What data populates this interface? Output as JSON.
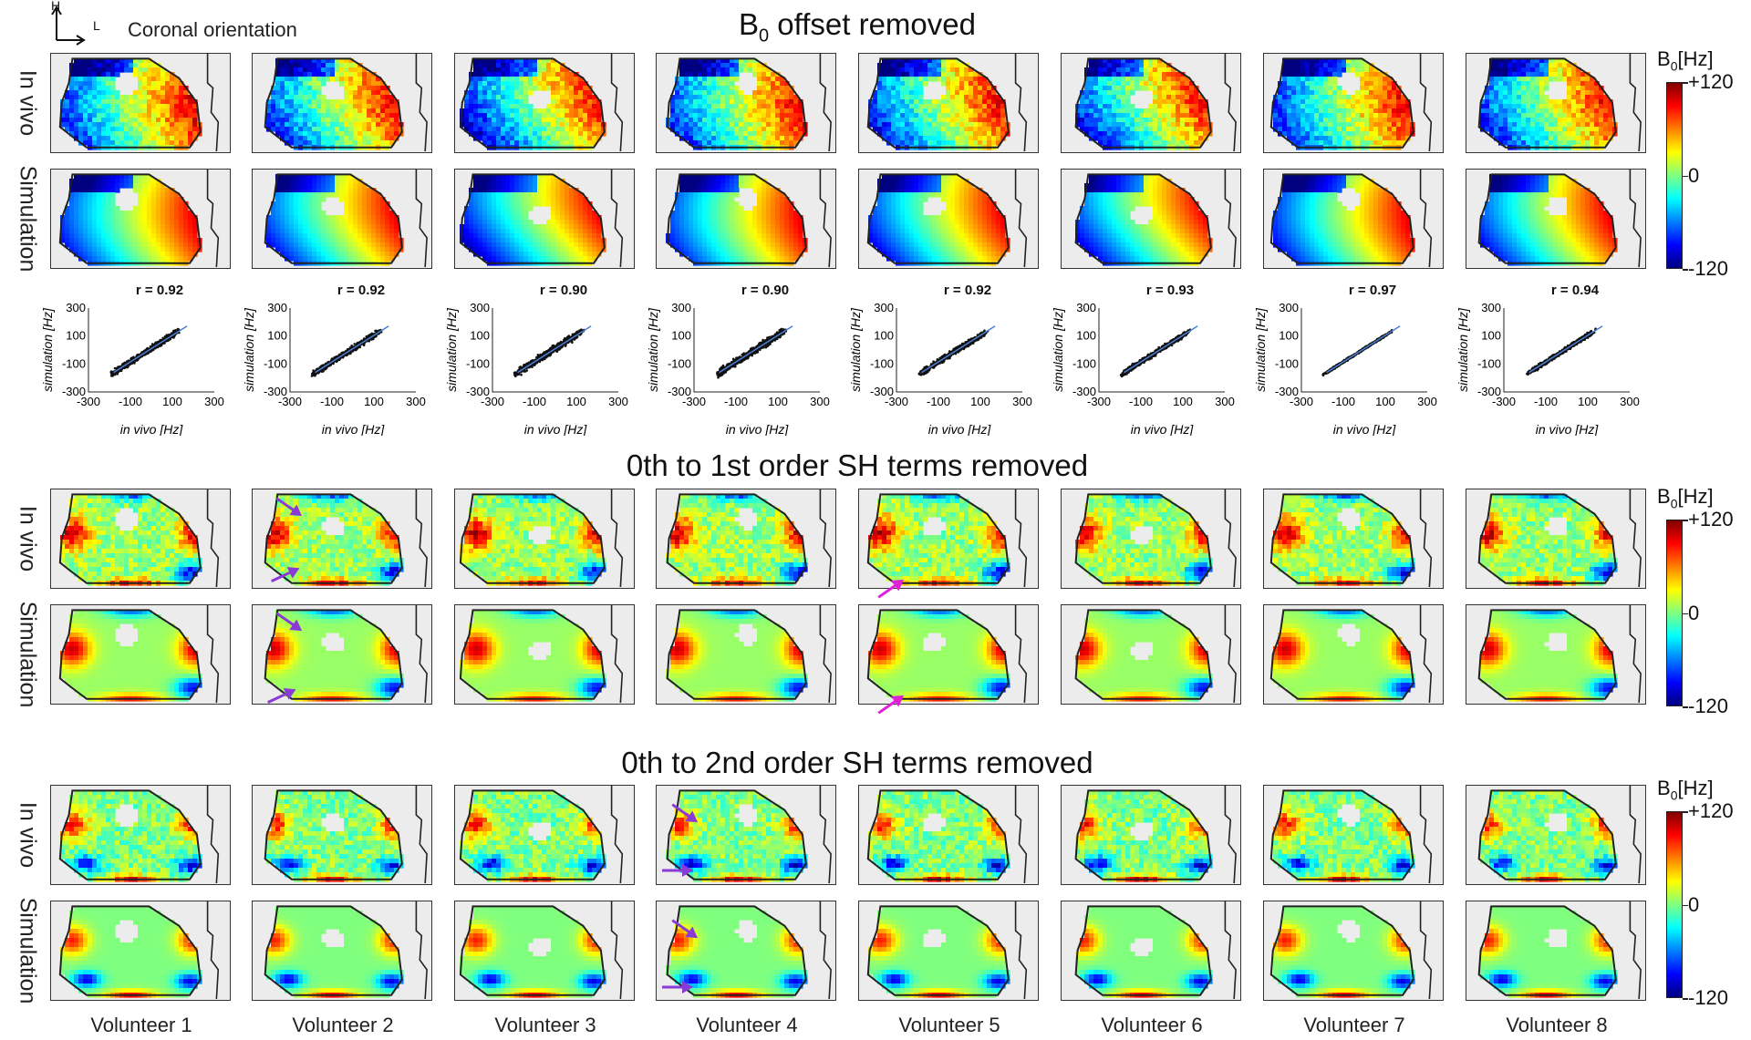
{
  "orientation": {
    "h": "H",
    "l": "L",
    "label": "Coronal orientation"
  },
  "sections": [
    {
      "title_main": "B",
      "title_sub": "0",
      "title_rest": " offset removed",
      "variant": 0,
      "has_scatter": true
    },
    {
      "title_main": "0th to 1st order SH terms removed",
      "title_sub": "",
      "title_rest": "",
      "variant": 1,
      "has_scatter": false
    },
    {
      "title_main": "0th to 2nd order SH terms removed",
      "title_sub": "",
      "title_rest": "",
      "variant": 2,
      "has_scatter": false
    }
  ],
  "row_labels": {
    "invivo": "In vivo",
    "simulation": "Simulation"
  },
  "colorbar": {
    "title_main": "B",
    "title_sub": "0",
    "title_rest": "[Hz]",
    "max_label": "+120",
    "mid_label": "0",
    "min_label": "-120"
  },
  "volunteers": [
    "Volunteer 1",
    "Volunteer 2",
    "Volunteer 3",
    "Volunteer 4",
    "Volunteer 5",
    "Volunteer 6",
    "Volunteer 7",
    "Volunteer 8"
  ],
  "correlations": [
    "r = 0.92",
    "r = 0.92",
    "r = 0.90",
    "r = 0.90",
    "r = 0.92",
    "r = 0.93",
    "r = 0.97",
    "r = 0.94"
  ],
  "chart_data": {
    "type": "scatter",
    "xlabel": "in vivo [Hz]",
    "ylabel": "simulation [Hz]",
    "xlim": [
      -300,
      300
    ],
    "ylim": [
      -300,
      300
    ],
    "x_ticks": [
      "-300",
      "-100",
      "100",
      "300"
    ],
    "y_ticks": [
      "300",
      "100",
      "-100",
      "-300"
    ],
    "r_values": [
      0.92,
      0.92,
      0.9,
      0.9,
      0.92,
      0.93,
      0.97,
      0.94
    ]
  },
  "colors": {
    "map_background": "#ececec",
    "outline": "#222222",
    "fit_line": "#4a7fd4",
    "arrow": "#8a3ad6",
    "arrow_alt": "#e020d8"
  }
}
